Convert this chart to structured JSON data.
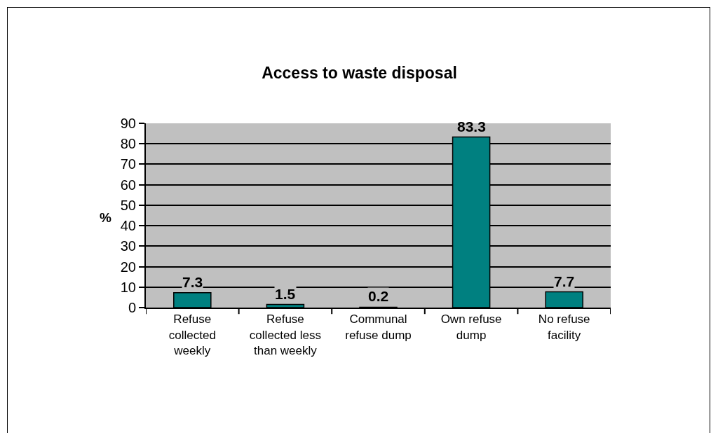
{
  "chart_data": {
    "type": "bar",
    "title": "Access to waste disposal",
    "ylabel": "%",
    "categories": [
      "Refuse collected weekly",
      "Refuse collected less than weekly",
      "Communal refuse dump",
      "Own refuse dump",
      "No refuse facility"
    ],
    "values": [
      7.3,
      1.5,
      0.2,
      83.3,
      7.7
    ],
    "color": "#008080",
    "ylim": [
      0,
      90
    ],
    "yticks": [
      0,
      10,
      20,
      30,
      40,
      50,
      60,
      70,
      80,
      90
    ],
    "grid": "y",
    "data_labels": true
  }
}
